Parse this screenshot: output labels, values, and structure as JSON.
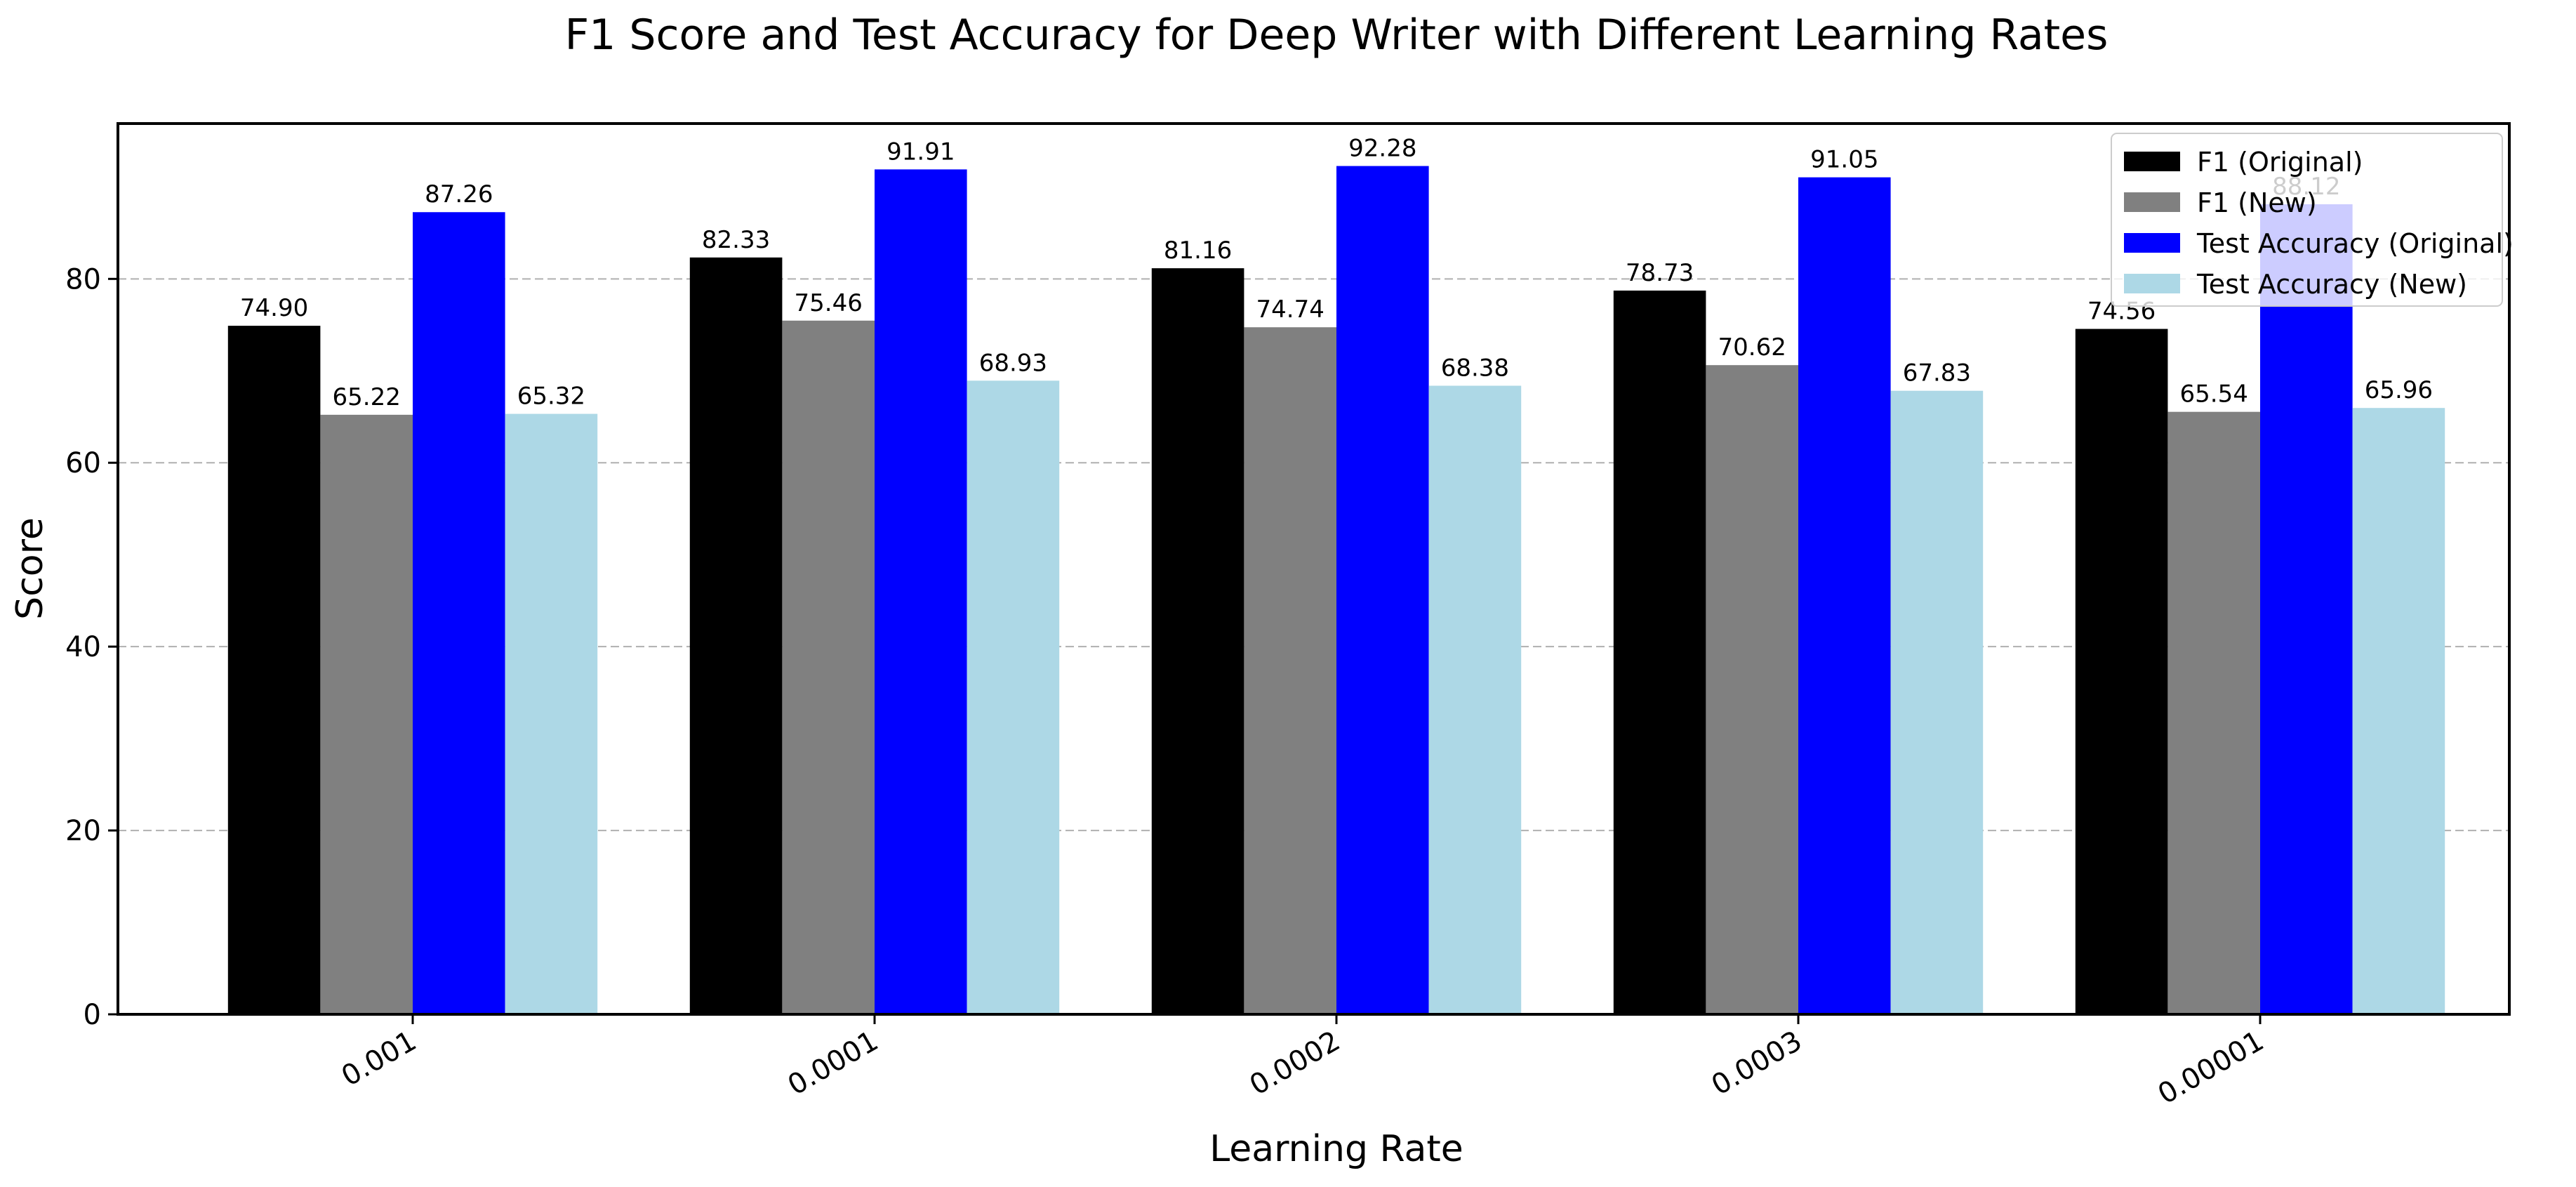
{
  "chart_data": {
    "type": "bar",
    "title": "F1 Score and Test Accuracy for Deep Writer with Different Learning Rates",
    "xlabel": "Learning Rate",
    "ylabel": "Score",
    "categories": [
      "0.001",
      "0.0001",
      "0.0002",
      "0.0003",
      "0.00001"
    ],
    "series": [
      {
        "name": "F1 (Original)",
        "color": "#000000",
        "values": [
          74.9,
          82.33,
          81.16,
          78.73,
          74.56
        ],
        "labels": [
          "74.90",
          "82.33",
          "81.16",
          "78.73",
          "74.56"
        ]
      },
      {
        "name": "F1 (New)",
        "color": "#808080",
        "values": [
          65.22,
          75.46,
          74.74,
          70.62,
          65.54
        ],
        "labels": [
          "65.22",
          "75.46",
          "74.74",
          "70.62",
          "65.54"
        ]
      },
      {
        "name": "Test Accuracy (Original)",
        "color": "#0000ff",
        "values": [
          87.26,
          91.91,
          92.28,
          91.05,
          88.12
        ],
        "labels": [
          "87.26",
          "91.91",
          "92.28",
          "91.05",
          "88.12"
        ]
      },
      {
        "name": "Test Accuracy (New)",
        "color": "#add8e6",
        "values": [
          65.32,
          68.93,
          68.38,
          67.83,
          65.96
        ],
        "labels": [
          "65.32",
          "68.93",
          "68.38",
          "67.83",
          "65.96"
        ]
      }
    ],
    "ylim": [
      0,
      96.9
    ],
    "yticks": [
      0,
      20,
      40,
      60,
      80
    ],
    "grid": "y-dashed",
    "legend_position": "top-right"
  }
}
